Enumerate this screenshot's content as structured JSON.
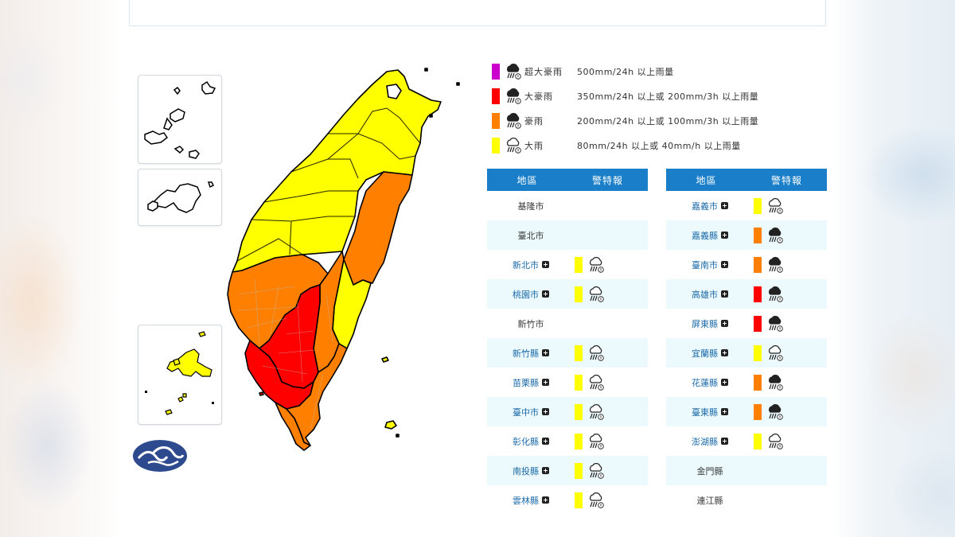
{
  "legend": [
    {
      "name": "超大豪雨",
      "desc": "500mm/24h 以上雨量",
      "color": "#cc00cc",
      "icon": "heavy-rain-icon"
    },
    {
      "name": "大豪雨",
      "desc": "350mm/24h 以上或 200mm/3h 以上雨量",
      "color": "#ff0000",
      "icon": "heavy-rain-icon"
    },
    {
      "name": "豪雨",
      "desc": "200mm/24h 以上或 100mm/3h 以上雨量",
      "color": "#ff8000",
      "icon": "heavy-rain-icon"
    },
    {
      "name": "大雨",
      "desc": "80mm/24h 以上或 40mm/h 以上雨量",
      "color": "#ffff00",
      "icon": "light-rain-icon"
    }
  ],
  "table_headers": {
    "region": "地區",
    "warning": "警特報"
  },
  "left_table": [
    {
      "name": "基隆市",
      "level": null
    },
    {
      "name": "臺北市",
      "level": null
    },
    {
      "name": "新北市",
      "level": "大雨"
    },
    {
      "name": "桃園市",
      "level": "大雨"
    },
    {
      "name": "新竹市",
      "level": null
    },
    {
      "name": "新竹縣",
      "level": "大雨"
    },
    {
      "name": "苗栗縣",
      "level": "大雨"
    },
    {
      "name": "臺中市",
      "level": "大雨"
    },
    {
      "name": "彰化縣",
      "level": "大雨"
    },
    {
      "name": "南投縣",
      "level": "大雨"
    },
    {
      "name": "雲林縣",
      "level": "大雨"
    }
  ],
  "right_table": [
    {
      "name": "嘉義市",
      "level": "大雨"
    },
    {
      "name": "嘉義縣",
      "level": "豪雨"
    },
    {
      "name": "臺南市",
      "level": "豪雨"
    },
    {
      "name": "高雄市",
      "level": "大豪雨"
    },
    {
      "name": "屏東縣",
      "level": "大豪雨"
    },
    {
      "name": "宜蘭縣",
      "level": "大雨"
    },
    {
      "name": "花蓮縣",
      "level": "豪雨"
    },
    {
      "name": "臺東縣",
      "level": "豪雨"
    },
    {
      "name": "澎湖縣",
      "level": "大雨"
    },
    {
      "name": "金門縣",
      "level": null
    },
    {
      "name": "連江縣",
      "level": null
    }
  ],
  "colors": {
    "超大豪雨": "#cc00cc",
    "大豪雨": "#ff0000",
    "豪雨": "#ff8000",
    "大雨": "#ffff00",
    "header_bg": "#1a7fc8",
    "row_alt": "#ecfafd",
    "logo": "#2d4a8e"
  }
}
